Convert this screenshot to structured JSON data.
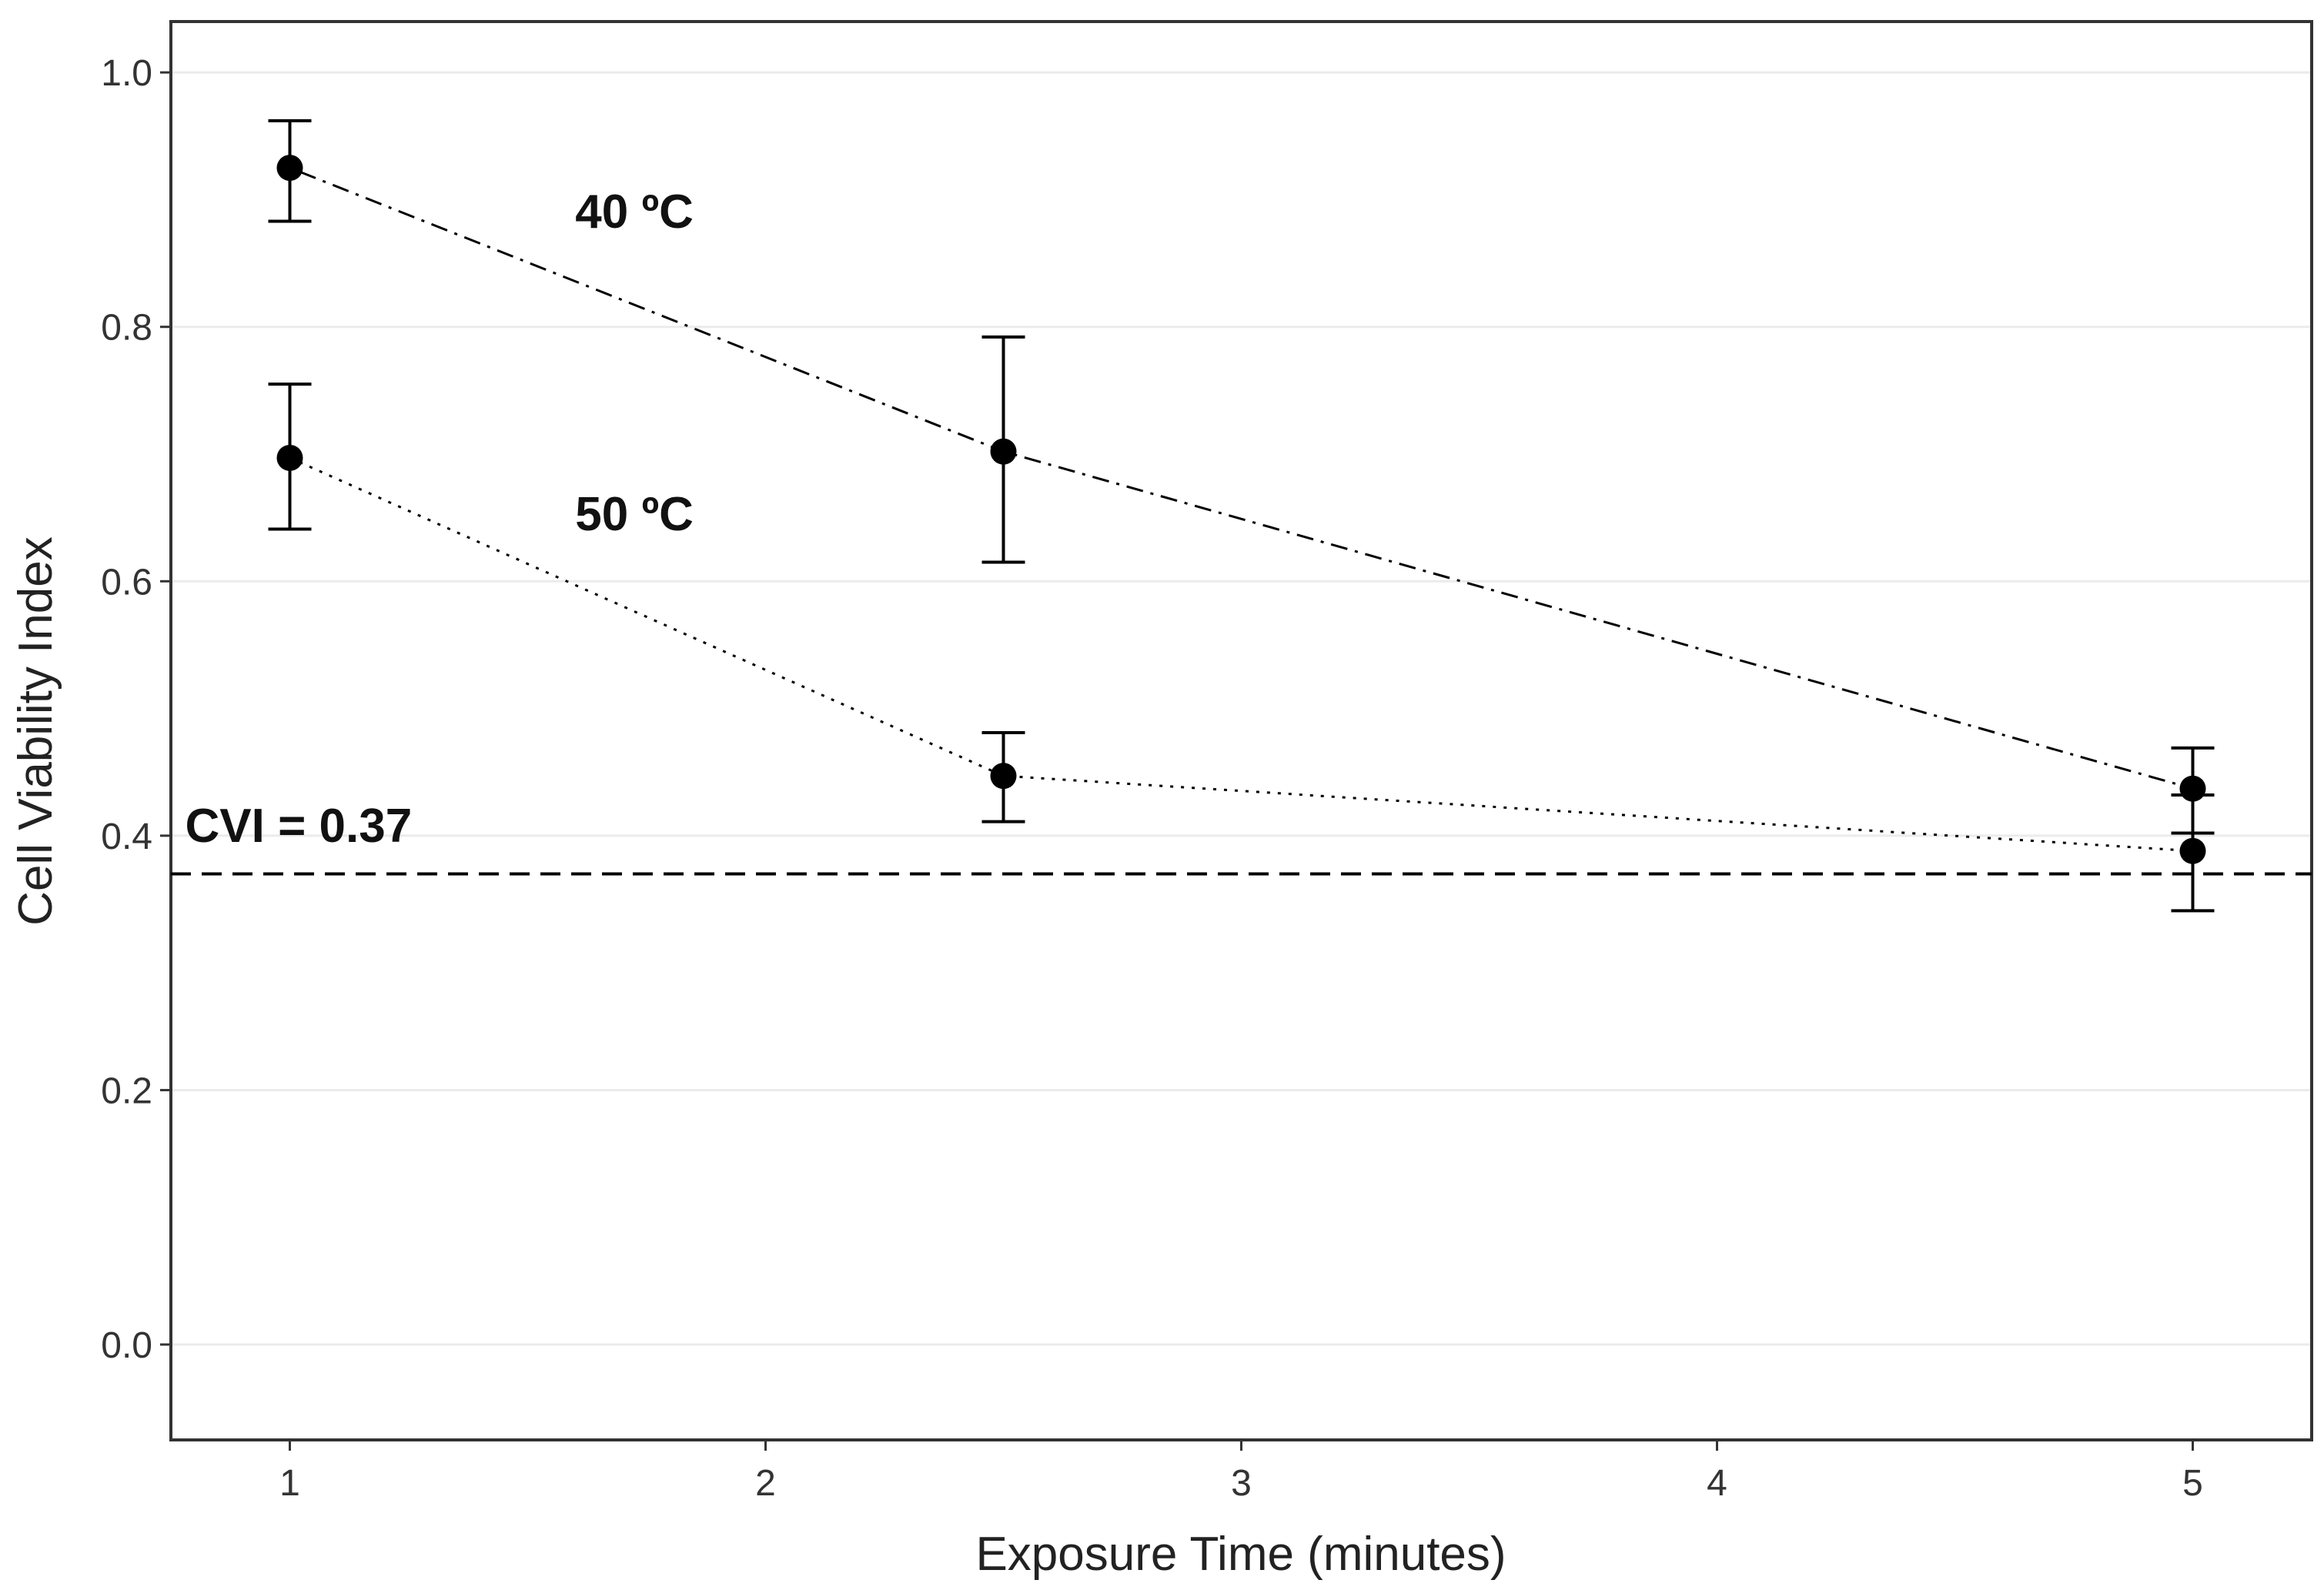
{
  "chart_data": {
    "type": "line",
    "title": "",
    "xlabel": "Exposure Time (minutes)",
    "ylabel": "Cell Viability Index",
    "xlim": [
      0.75,
      5.25
    ],
    "ylim": [
      -0.075,
      1.04
    ],
    "xticks": [
      1,
      2,
      3,
      4,
      5
    ],
    "xtick_labels": [
      "1",
      "2",
      "3",
      "4",
      "5"
    ],
    "yticks": [
      0.0,
      0.2,
      0.4,
      0.6,
      0.8,
      1.0
    ],
    "ytick_labels": [
      "0.0",
      "0.2",
      "0.4",
      "0.6",
      "0.8",
      "1.0"
    ],
    "grid": "horizontal",
    "legend": "none",
    "series": [
      {
        "name": "40 ºC",
        "line_style": "dotdash",
        "x": [
          1,
          2.5,
          5
        ],
        "y": [
          0.925,
          0.702,
          0.437
        ],
        "err_low": [
          0.883,
          0.615,
          0.402
        ],
        "err_high": [
          0.962,
          0.792,
          0.469
        ],
        "label_at": [
          1.6,
          0.878
        ]
      },
      {
        "name": "50 ºC",
        "line_style": "dotted",
        "x": [
          1,
          2.5,
          5
        ],
        "y": [
          0.697,
          0.447,
          0.388
        ],
        "err_low": [
          0.641,
          0.411,
          0.341
        ],
        "err_high": [
          0.755,
          0.481,
          0.432
        ],
        "label_at": [
          1.6,
          0.64
        ]
      }
    ],
    "reference_line": {
      "y": 0.37,
      "label": "CVI = 0.37",
      "line_style": "dashed",
      "label_at": [
        0.78,
        0.395
      ]
    }
  }
}
